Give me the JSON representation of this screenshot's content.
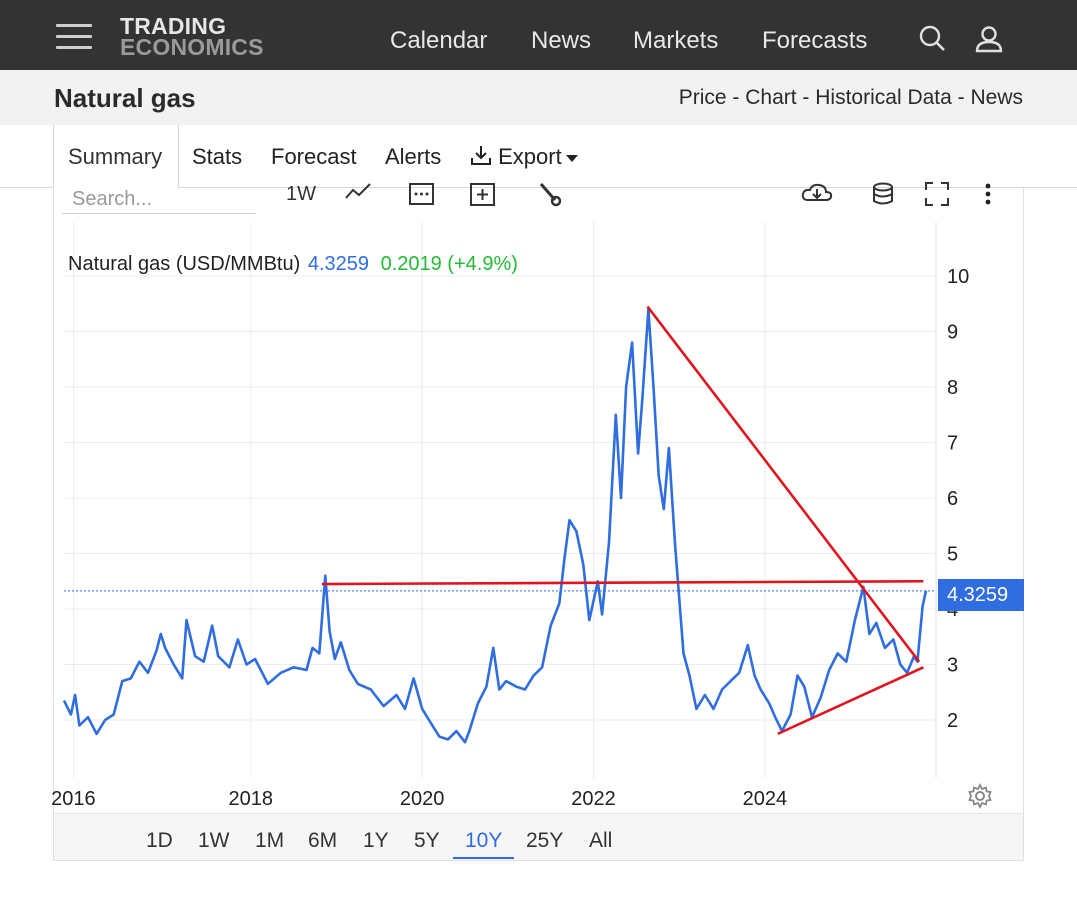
{
  "nav": {
    "logo_line1": "TRADING",
    "logo_line2": "ECONOMICS",
    "items": [
      "Calendar",
      "News",
      "Markets",
      "Forecasts"
    ]
  },
  "title": "Natural gas",
  "links": [
    "Price",
    "Chart",
    "Historical Data",
    "News"
  ],
  "tabs": {
    "summary": "Summary",
    "stats": "Stats",
    "forecast": "Forecast",
    "alerts": "Alerts",
    "export": "Export"
  },
  "toolbar": {
    "search_placeholder": "Search...",
    "interval": "1W"
  },
  "legend": {
    "name": "Natural gas (USD/MMBtu)",
    "price": "4.3259",
    "change": "0.2019 (+4.9%)"
  },
  "price_tag": "4.3259",
  "ranges": [
    "1D",
    "1W",
    "1M",
    "6M",
    "1Y",
    "5Y",
    "10Y",
    "25Y",
    "All"
  ],
  "active_range": "10Y",
  "colors": {
    "series": "#2f6de1",
    "trend": "#e0141e",
    "price_up": "#22bb33",
    "nav_bg": "#333333"
  },
  "chart_data": {
    "type": "line",
    "ylim": [
      1,
      11
    ],
    "y_ticks": [
      "2",
      "3",
      "4",
      "5",
      "6",
      "7",
      "8",
      "9",
      "10"
    ],
    "x_ticks": [
      {
        "label": "2016",
        "t": 2015.93
      },
      {
        "label": "2018",
        "t": 2018.0
      },
      {
        "label": "2020",
        "t": 2020.0
      },
      {
        "label": "2022",
        "t": 2022.0
      },
      {
        "label": "2024",
        "t": 2024.0
      }
    ],
    "xlim": [
      2015.82,
      2025.88
    ],
    "grid": true,
    "series": [
      {
        "values": [
          [
            2015.82,
            2.35
          ],
          [
            2015.9,
            2.1
          ],
          [
            2015.95,
            2.45
          ],
          [
            2016.0,
            1.9
          ],
          [
            2016.1,
            2.05
          ],
          [
            2016.2,
            1.75
          ],
          [
            2016.3,
            2.0
          ],
          [
            2016.4,
            2.1
          ],
          [
            2016.5,
            2.7
          ],
          [
            2016.6,
            2.75
          ],
          [
            2016.7,
            3.05
          ],
          [
            2016.8,
            2.85
          ],
          [
            2016.9,
            3.25
          ],
          [
            2016.95,
            3.55
          ],
          [
            2017.0,
            3.3
          ],
          [
            2017.1,
            3.0
          ],
          [
            2017.2,
            2.75
          ],
          [
            2017.25,
            3.8
          ],
          [
            2017.35,
            3.15
          ],
          [
            2017.45,
            3.05
          ],
          [
            2017.55,
            3.7
          ],
          [
            2017.62,
            3.15
          ],
          [
            2017.75,
            2.95
          ],
          [
            2017.85,
            3.45
          ],
          [
            2017.95,
            3.0
          ],
          [
            2018.05,
            3.1
          ],
          [
            2018.2,
            2.65
          ],
          [
            2018.35,
            2.85
          ],
          [
            2018.5,
            2.95
          ],
          [
            2018.65,
            2.9
          ],
          [
            2018.72,
            3.3
          ],
          [
            2018.8,
            3.2
          ],
          [
            2018.87,
            4.6
          ],
          [
            2018.92,
            3.6
          ],
          [
            2018.98,
            3.1
          ],
          [
            2019.05,
            3.4
          ],
          [
            2019.15,
            2.9
          ],
          [
            2019.25,
            2.65
          ],
          [
            2019.4,
            2.55
          ],
          [
            2019.55,
            2.25
          ],
          [
            2019.7,
            2.45
          ],
          [
            2019.8,
            2.2
          ],
          [
            2019.9,
            2.75
          ],
          [
            2020.0,
            2.2
          ],
          [
            2020.12,
            1.9
          ],
          [
            2020.2,
            1.7
          ],
          [
            2020.3,
            1.65
          ],
          [
            2020.4,
            1.8
          ],
          [
            2020.5,
            1.6
          ],
          [
            2020.55,
            1.8
          ],
          [
            2020.65,
            2.3
          ],
          [
            2020.75,
            2.6
          ],
          [
            2020.83,
            3.3
          ],
          [
            2020.9,
            2.55
          ],
          [
            2020.98,
            2.7
          ],
          [
            2021.1,
            2.6
          ],
          [
            2021.2,
            2.55
          ],
          [
            2021.3,
            2.8
          ],
          [
            2021.4,
            2.95
          ],
          [
            2021.5,
            3.7
          ],
          [
            2021.6,
            4.1
          ],
          [
            2021.66,
            4.9
          ],
          [
            2021.72,
            5.6
          ],
          [
            2021.8,
            5.4
          ],
          [
            2021.88,
            4.8
          ],
          [
            2021.95,
            3.8
          ],
          [
            2022.05,
            4.5
          ],
          [
            2022.1,
            3.9
          ],
          [
            2022.18,
            5.2
          ],
          [
            2022.26,
            7.5
          ],
          [
            2022.32,
            6.0
          ],
          [
            2022.38,
            8.0
          ],
          [
            2022.45,
            8.8
          ],
          [
            2022.52,
            6.8
          ],
          [
            2022.57,
            7.8
          ],
          [
            2022.64,
            9.4
          ],
          [
            2022.7,
            8.0
          ],
          [
            2022.76,
            6.4
          ],
          [
            2022.82,
            5.8
          ],
          [
            2022.88,
            6.9
          ],
          [
            2022.95,
            5.2
          ],
          [
            2023.0,
            4.2
          ],
          [
            2023.05,
            3.2
          ],
          [
            2023.12,
            2.8
          ],
          [
            2023.2,
            2.2
          ],
          [
            2023.3,
            2.45
          ],
          [
            2023.4,
            2.2
          ],
          [
            2023.5,
            2.55
          ],
          [
            2023.6,
            2.7
          ],
          [
            2023.7,
            2.85
          ],
          [
            2023.8,
            3.35
          ],
          [
            2023.88,
            2.8
          ],
          [
            2023.95,
            2.55
          ],
          [
            2024.05,
            2.3
          ],
          [
            2024.12,
            2.05
          ],
          [
            2024.2,
            1.8
          ],
          [
            2024.3,
            2.1
          ],
          [
            2024.38,
            2.8
          ],
          [
            2024.46,
            2.6
          ],
          [
            2024.55,
            2.05
          ],
          [
            2024.65,
            2.4
          ],
          [
            2024.75,
            2.9
          ],
          [
            2024.85,
            3.2
          ],
          [
            2024.95,
            3.05
          ],
          [
            2025.05,
            3.8
          ],
          [
            2025.15,
            4.4
          ],
          [
            2025.22,
            3.55
          ],
          [
            2025.3,
            3.75
          ],
          [
            2025.4,
            3.3
          ],
          [
            2025.5,
            3.45
          ],
          [
            2025.58,
            3.0
          ],
          [
            2025.66,
            2.85
          ],
          [
            2025.74,
            3.15
          ],
          [
            2025.78,
            3.05
          ],
          [
            2025.84,
            4.05
          ],
          [
            2025.88,
            4.33
          ]
        ]
      }
    ],
    "trendlines": [
      {
        "from": [
          2018.83,
          4.45
        ],
        "to": [
          2025.85,
          4.5
        ]
      },
      {
        "from": [
          2022.63,
          9.45
        ],
        "to": [
          2025.8,
          3.05
        ]
      },
      {
        "from": [
          2024.15,
          1.75
        ],
        "to": [
          2025.85,
          2.95
        ]
      }
    ],
    "last_value": 4.3259
  }
}
